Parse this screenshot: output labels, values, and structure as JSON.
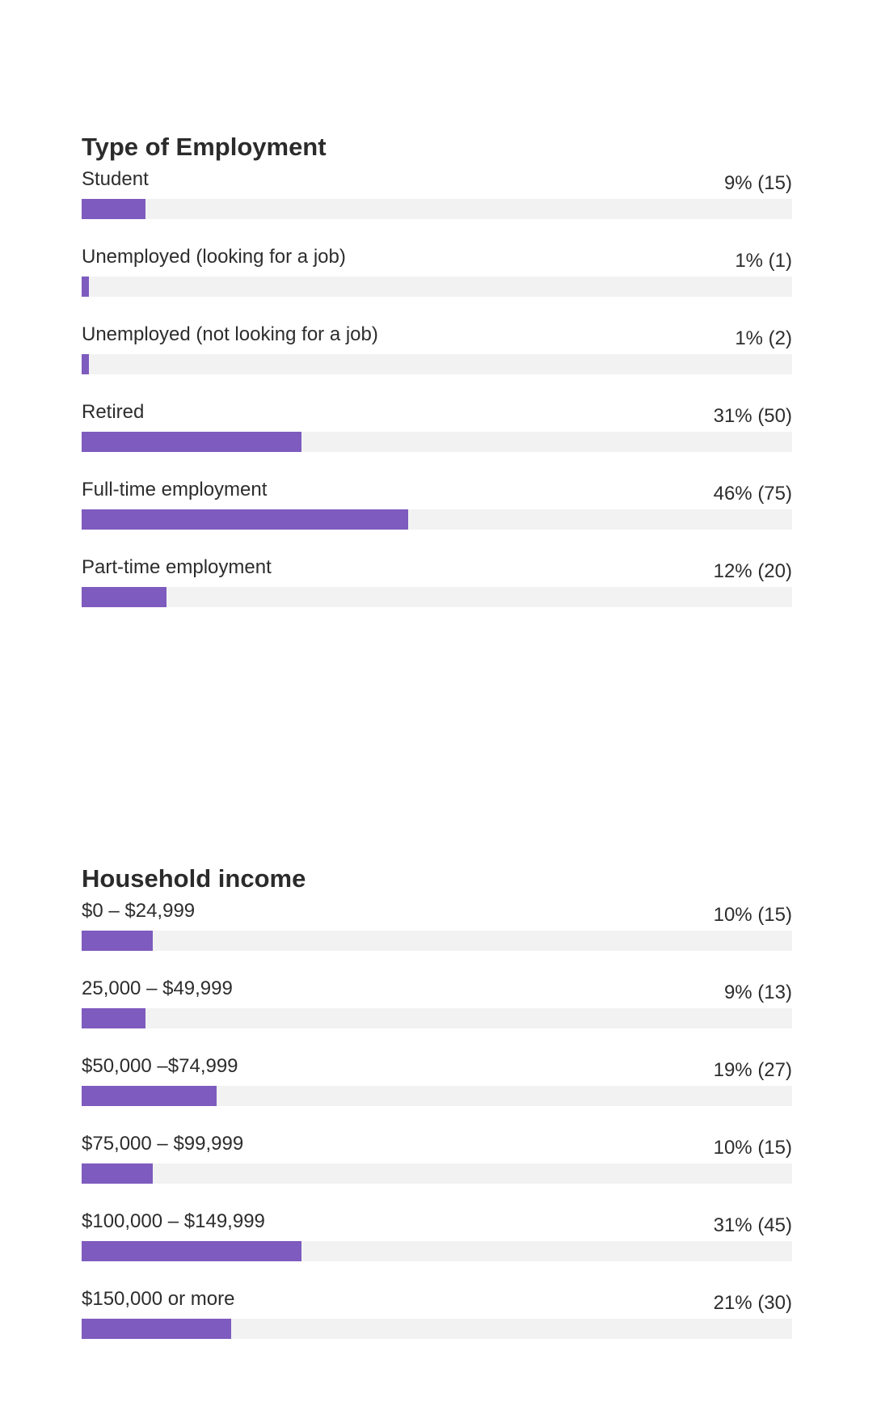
{
  "colors": {
    "bar_fill": "#7e5bbe",
    "bar_track": "#f2f2f2",
    "text": "#2d2d2d"
  },
  "chart_data": [
    {
      "type": "bar",
      "orientation": "horizontal",
      "title": "Type of Employment",
      "categories": [
        "Student",
        "Unemployed (looking for a job)",
        "Unemployed (not looking for a job)",
        "Retired",
        "Full-time employment",
        "Part-time employment"
      ],
      "percent": [
        9,
        1,
        1,
        31,
        46,
        12
      ],
      "counts": [
        15,
        1,
        2,
        50,
        75,
        20
      ],
      "value_labels": [
        "9% (15)",
        "1% (1)",
        "1% (2)",
        "31% (50)",
        "46% (75)",
        "12% (20)"
      ],
      "xlim": [
        0,
        100
      ]
    },
    {
      "type": "bar",
      "orientation": "horizontal",
      "title": "Household income",
      "categories": [
        "$0 – $24,999",
        "25,000 – $49,999",
        "$50,000 –$74,999",
        "$75,000 – $99,999",
        "$100,000 – $149,999",
        "$150,000 or more"
      ],
      "percent": [
        10,
        9,
        19,
        10,
        31,
        21
      ],
      "counts": [
        15,
        13,
        27,
        15,
        45,
        30
      ],
      "value_labels": [
        "10% (15)",
        "9% (13)",
        "19% (27)",
        "10% (15)",
        "31% (45)",
        "21% (30)"
      ],
      "xlim": [
        0,
        100
      ]
    }
  ]
}
